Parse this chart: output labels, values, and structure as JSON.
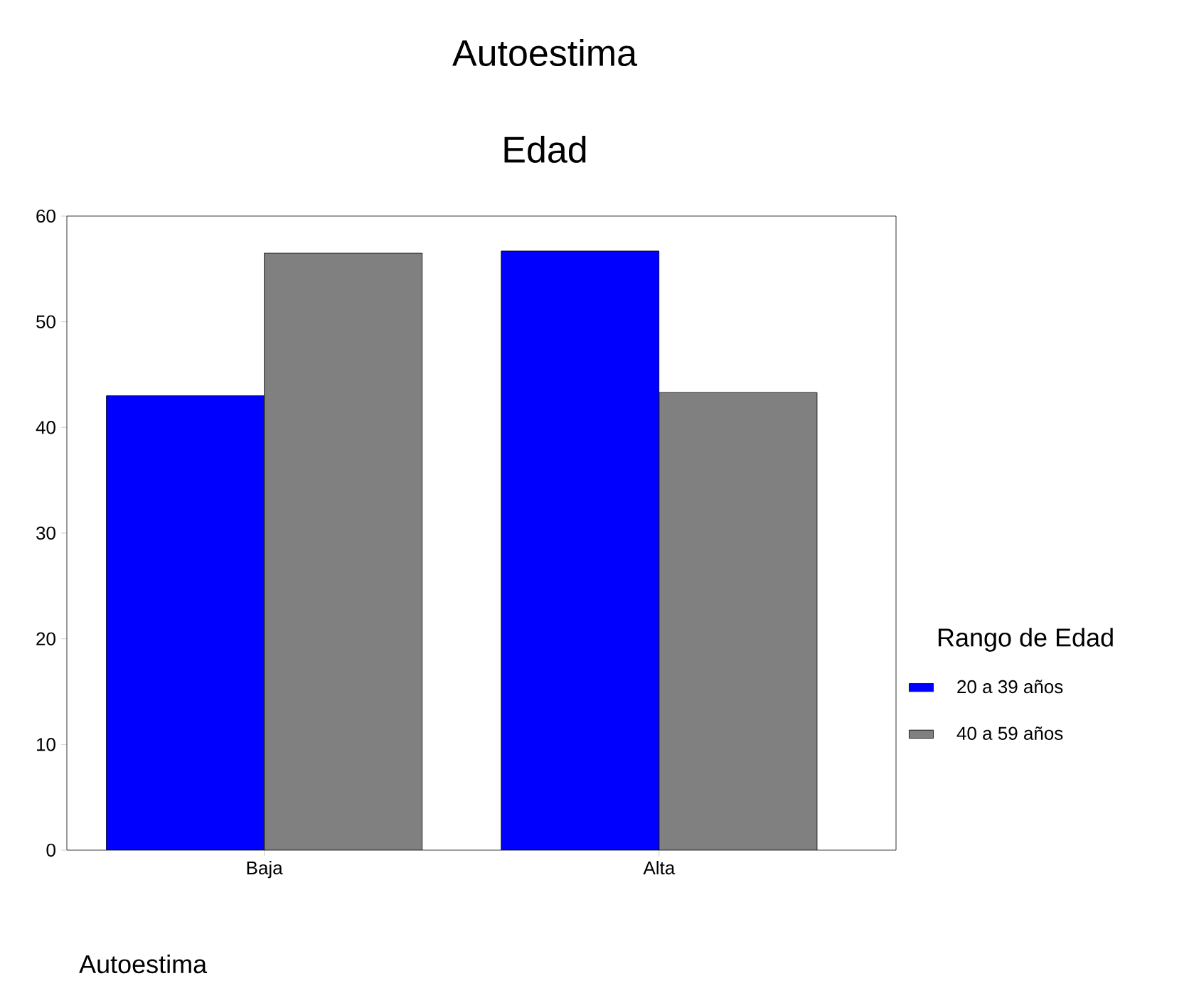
{
  "chart_data": {
    "type": "bar",
    "title": "Autoestima",
    "subtitle": "Edad",
    "xlabel": "Autoestima",
    "legend_title": "Rango de Edad",
    "legend": "right",
    "categories": [
      "Baja",
      "Alta"
    ],
    "series": [
      {
        "name": "20 a 39 años",
        "color": "#0000ff",
        "values": [
          43,
          56.7
        ]
      },
      {
        "name": "40 a 59 años",
        "color": "#808080",
        "values": [
          56.5,
          43.3
        ]
      }
    ],
    "ylim": [
      0,
      60
    ],
    "yticks": [
      0,
      10,
      20,
      30,
      40,
      50,
      60
    ]
  }
}
